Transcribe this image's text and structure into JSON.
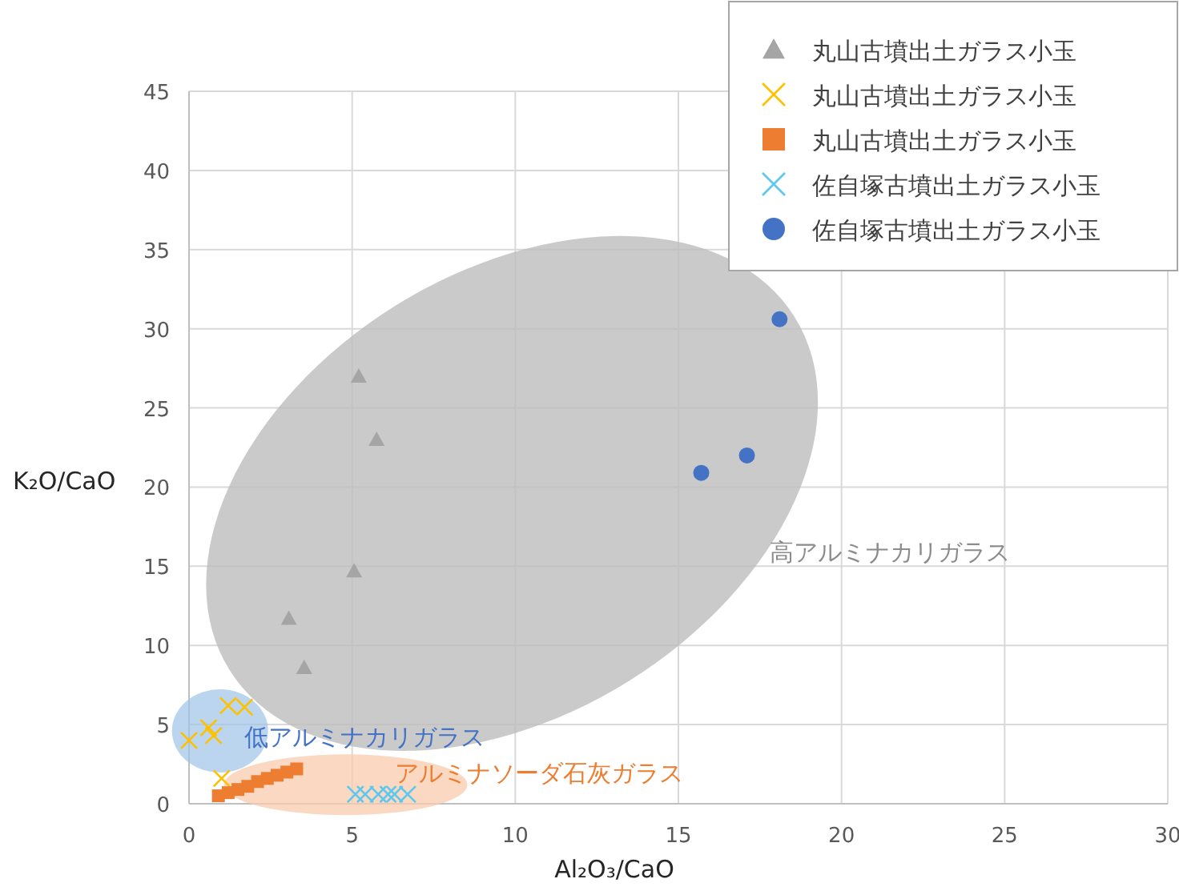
{
  "chart_data": {
    "type": "scatter",
    "xlabel": "Al₂O₃/CaO",
    "ylabel": "K₂O/CaO",
    "xlim": [
      0,
      30
    ],
    "ylim": [
      0,
      45
    ],
    "xticks": [
      0,
      5,
      10,
      15,
      20,
      25,
      30
    ],
    "yticks": [
      0,
      5,
      10,
      15,
      20,
      25,
      30,
      35,
      40,
      45
    ],
    "grid": true,
    "legend": "top right",
    "series": [
      {
        "name": "丸山古墳出土ガラス小玉",
        "color": "#a5a5a5",
        "marker": "triangle",
        "x": [
          5.2,
          5.75,
          5.06,
          3.06,
          3.53
        ],
        "values": [
          27.0,
          23.0,
          14.7,
          11.7,
          8.6
        ]
      },
      {
        "name": "丸山古墳出土ガラス小玉",
        "color": "#ffc000",
        "marker": "cross",
        "x": [
          0.0,
          0.6,
          0.75,
          1.2,
          1.7,
          1.0
        ],
        "values": [
          4.0,
          4.8,
          4.3,
          6.2,
          6.1,
          1.6
        ]
      },
      {
        "name": "丸山古墳出土ガラス小玉",
        "color": "#ed7d31",
        "marker": "square",
        "x": [
          0.9,
          1.2,
          1.5,
          1.8,
          2.1,
          2.4,
          2.7,
          3.0,
          3.3
        ],
        "values": [
          0.5,
          0.7,
          0.9,
          1.1,
          1.4,
          1.6,
          1.8,
          2.0,
          2.2
        ]
      },
      {
        "name": "佐自塚古墳出土ガラス小玉",
        "color": "#5bc8f0",
        "marker": "cross",
        "x": [
          5.1,
          5.4,
          5.8,
          6.1,
          6.3,
          6.7
        ],
        "values": [
          0.6,
          0.6,
          0.6,
          0.6,
          0.6,
          0.6
        ]
      },
      {
        "name": "佐自塚古墳出土ガラス小玉",
        "color": "#4472c4",
        "marker": "circle",
        "x": [
          18.1,
          15.7,
          17.1
        ],
        "values": [
          30.6,
          20.9,
          22.0
        ]
      }
    ],
    "annotations": [
      "高アルミナカリガラス",
      "低アルミナカリガラス",
      "アルミナソーダ石灰ガラス"
    ]
  }
}
